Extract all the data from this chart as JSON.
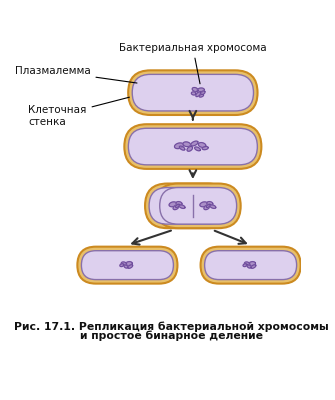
{
  "bg_color": "#ffffff",
  "cell_wall_color": "#E8C06A",
  "cell_wall_edge_color": "#CC8A20",
  "membrane_color": "#DDD0EE",
  "membrane_edge_color": "#8870AA",
  "chromosome_color": "#6B4A9A",
  "chromosome_fill": "#9B7ABB",
  "arrow_color": "#333333",
  "label_color": "#111111",
  "title_line1": "Рис. 17.1. Репликация бактериальной хромосомы",
  "title_line2": "и простое бинарное деление",
  "label_chromosome": "Бактериальная хромосома",
  "label_membrane": "Плазмалемма",
  "label_wall": "Клеточная\nстенка"
}
